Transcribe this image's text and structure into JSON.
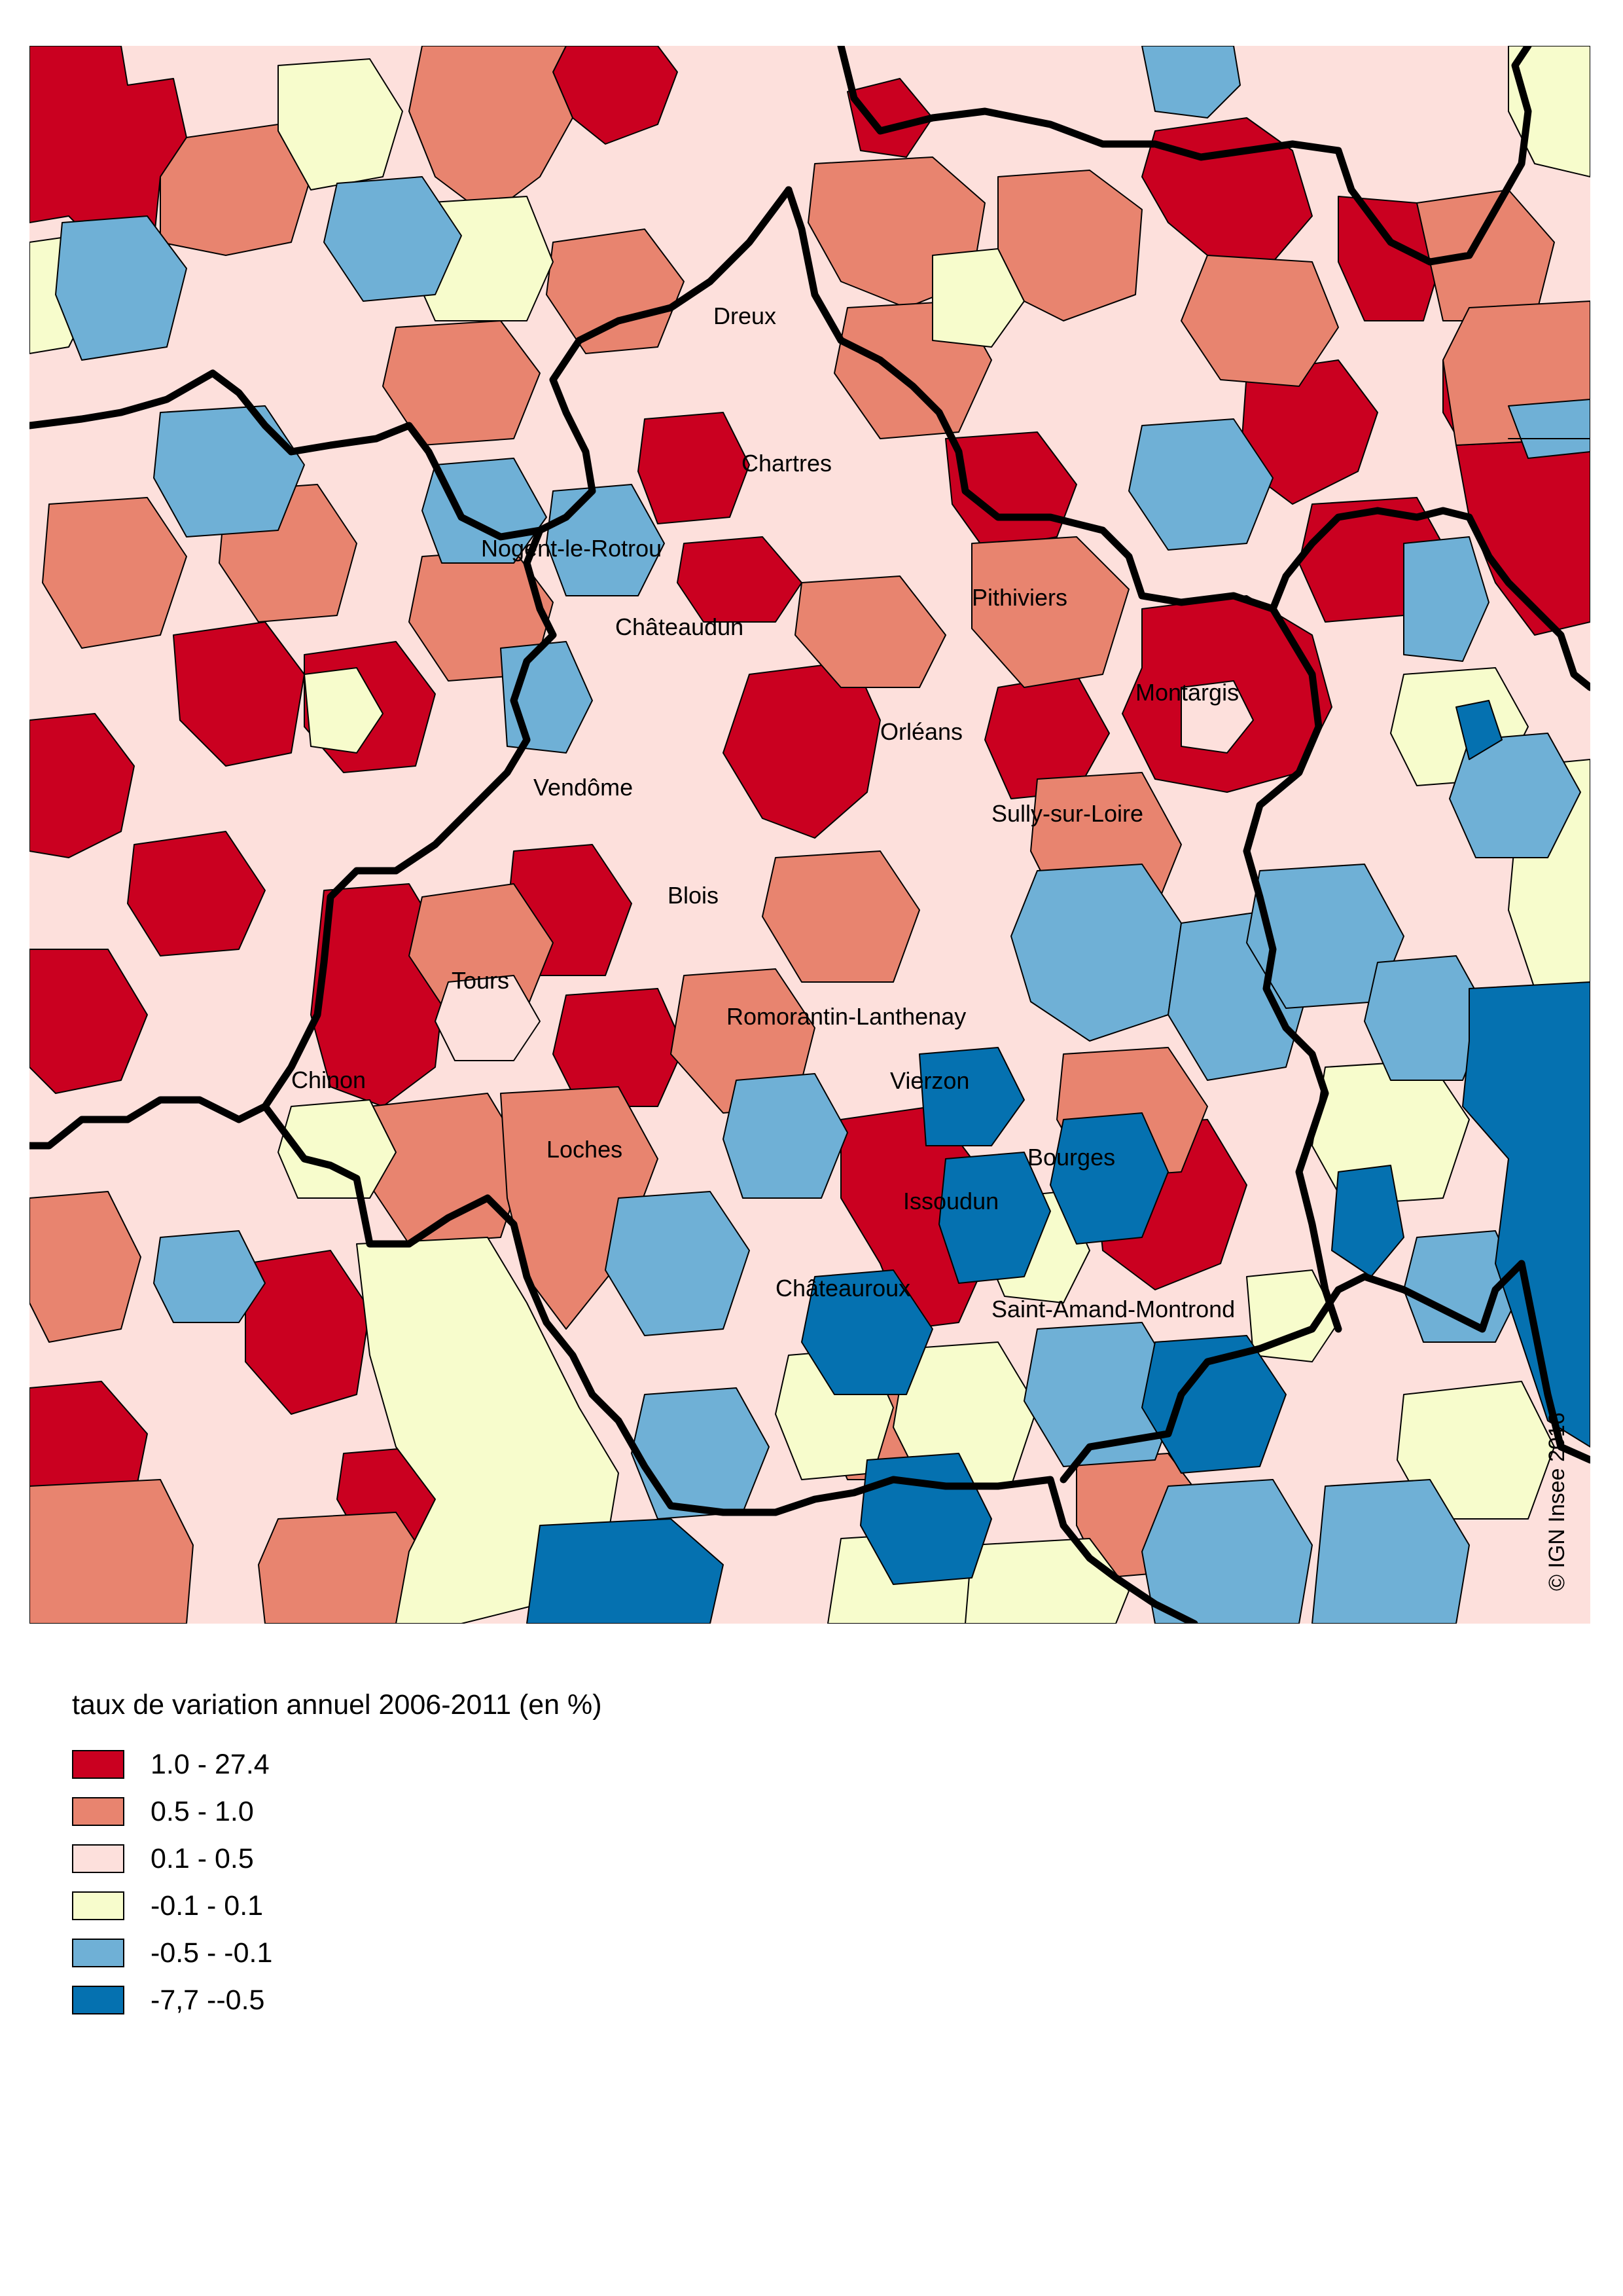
{
  "legend": {
    "title": "taux de variation annuel 2006-2011 (en %)",
    "classes": [
      {
        "label": "1.0 - 27.4",
        "color": "#ca0020"
      },
      {
        "label": "0.5 - 1.0",
        "color": "#e8846f"
      },
      {
        "label": "0.1 - 0.5",
        "color": "#fde0dc"
      },
      {
        "label": "-0.1 - 0.1",
        "color": "#f7fccc"
      },
      {
        "label": "-0.5 - -0.1",
        "color": "#6fb0d6"
      },
      {
        "label": "-7,7 --0.5",
        "color": "#0571b0"
      }
    ]
  },
  "cities": {
    "dreux": "Dreux",
    "chartres": "Chartres",
    "nogent": "Nogent-le-Rotrou",
    "chateaudun": "Châteaudun",
    "pithiviers": "Pithiviers",
    "montargis": "Montargis",
    "orleans": "Orléans",
    "vendome": "Vendôme",
    "sully": "Sully-sur-Loire",
    "blois": "Blois",
    "tours": "Tours",
    "romorantin": "Romorantin-Lanthenay",
    "chinon": "Chinon",
    "vierzon": "Vierzon",
    "loches": "Loches",
    "bourges": "Bourges",
    "issoudun": "Issoudun",
    "chateauroux": "Châteauroux",
    "saint_amand": "Saint-Amand-Montrond"
  },
  "copyright": "© IGN Insee 2016"
}
